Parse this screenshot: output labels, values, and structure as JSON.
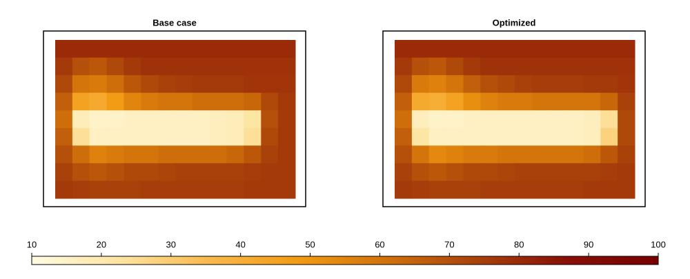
{
  "chart_data": {
    "type": "heatmap",
    "zlim": [
      10,
      100
    ],
    "zticks": [
      10,
      20,
      30,
      40,
      50,
      60,
      70,
      80,
      90,
      100
    ],
    "colormap": [
      "#fffbe2",
      "#fde3a0",
      "#f9b84a",
      "#f29a12",
      "#d0700a",
      "#a8400a",
      "#880e06",
      "#7a0000"
    ],
    "panels": [
      {
        "title": "Base case",
        "values": [
          [
            80,
            80,
            80,
            80,
            80,
            80,
            80,
            80,
            80,
            80,
            80,
            80,
            80,
            80
          ],
          [
            76,
            70,
            68,
            72,
            76,
            78,
            78,
            78,
            78,
            78,
            78,
            78,
            78,
            78
          ],
          [
            72,
            60,
            58,
            62,
            68,
            72,
            74,
            75,
            76,
            76,
            76,
            77,
            77,
            77
          ],
          [
            66,
            45,
            42,
            48,
            55,
            58,
            60,
            60,
            62,
            62,
            62,
            64,
            72,
            76
          ],
          [
            62,
            18,
            15,
            15,
            16,
            16,
            16,
            16,
            16,
            17,
            18,
            22,
            70,
            76
          ],
          [
            66,
            24,
            16,
            16,
            16,
            16,
            16,
            16,
            16,
            17,
            18,
            24,
            72,
            76
          ],
          [
            70,
            62,
            56,
            58,
            60,
            60,
            62,
            62,
            62,
            62,
            64,
            68,
            74,
            76
          ],
          [
            74,
            70,
            68,
            70,
            72,
            72,
            73,
            74,
            74,
            74,
            74,
            75,
            76,
            76
          ],
          [
            76,
            75,
            74,
            74,
            74,
            75,
            75,
            75,
            75,
            75,
            75,
            76,
            76,
            76
          ]
        ]
      },
      {
        "title": "Optimized",
        "values": [
          [
            80,
            80,
            80,
            80,
            80,
            80,
            80,
            80,
            80,
            80,
            80,
            80,
            80,
            80
          ],
          [
            76,
            70,
            68,
            72,
            76,
            78,
            78,
            78,
            78,
            78,
            78,
            78,
            78,
            78
          ],
          [
            72,
            58,
            56,
            60,
            66,
            70,
            72,
            74,
            75,
            75,
            75,
            76,
            76,
            77
          ],
          [
            66,
            42,
            40,
            45,
            52,
            56,
            58,
            58,
            60,
            60,
            60,
            60,
            64,
            74
          ],
          [
            62,
            17,
            15,
            15,
            16,
            16,
            16,
            16,
            16,
            16,
            16,
            17,
            24,
            72
          ],
          [
            66,
            22,
            16,
            16,
            16,
            16,
            16,
            16,
            16,
            16,
            16,
            17,
            28,
            72
          ],
          [
            70,
            60,
            54,
            56,
            58,
            58,
            60,
            60,
            60,
            60,
            60,
            62,
            68,
            74
          ],
          [
            74,
            70,
            68,
            70,
            72,
            72,
            73,
            74,
            74,
            74,
            74,
            74,
            75,
            76
          ],
          [
            76,
            75,
            74,
            74,
            74,
            75,
            75,
            75,
            75,
            75,
            75,
            76,
            76,
            76
          ]
        ]
      }
    ]
  }
}
